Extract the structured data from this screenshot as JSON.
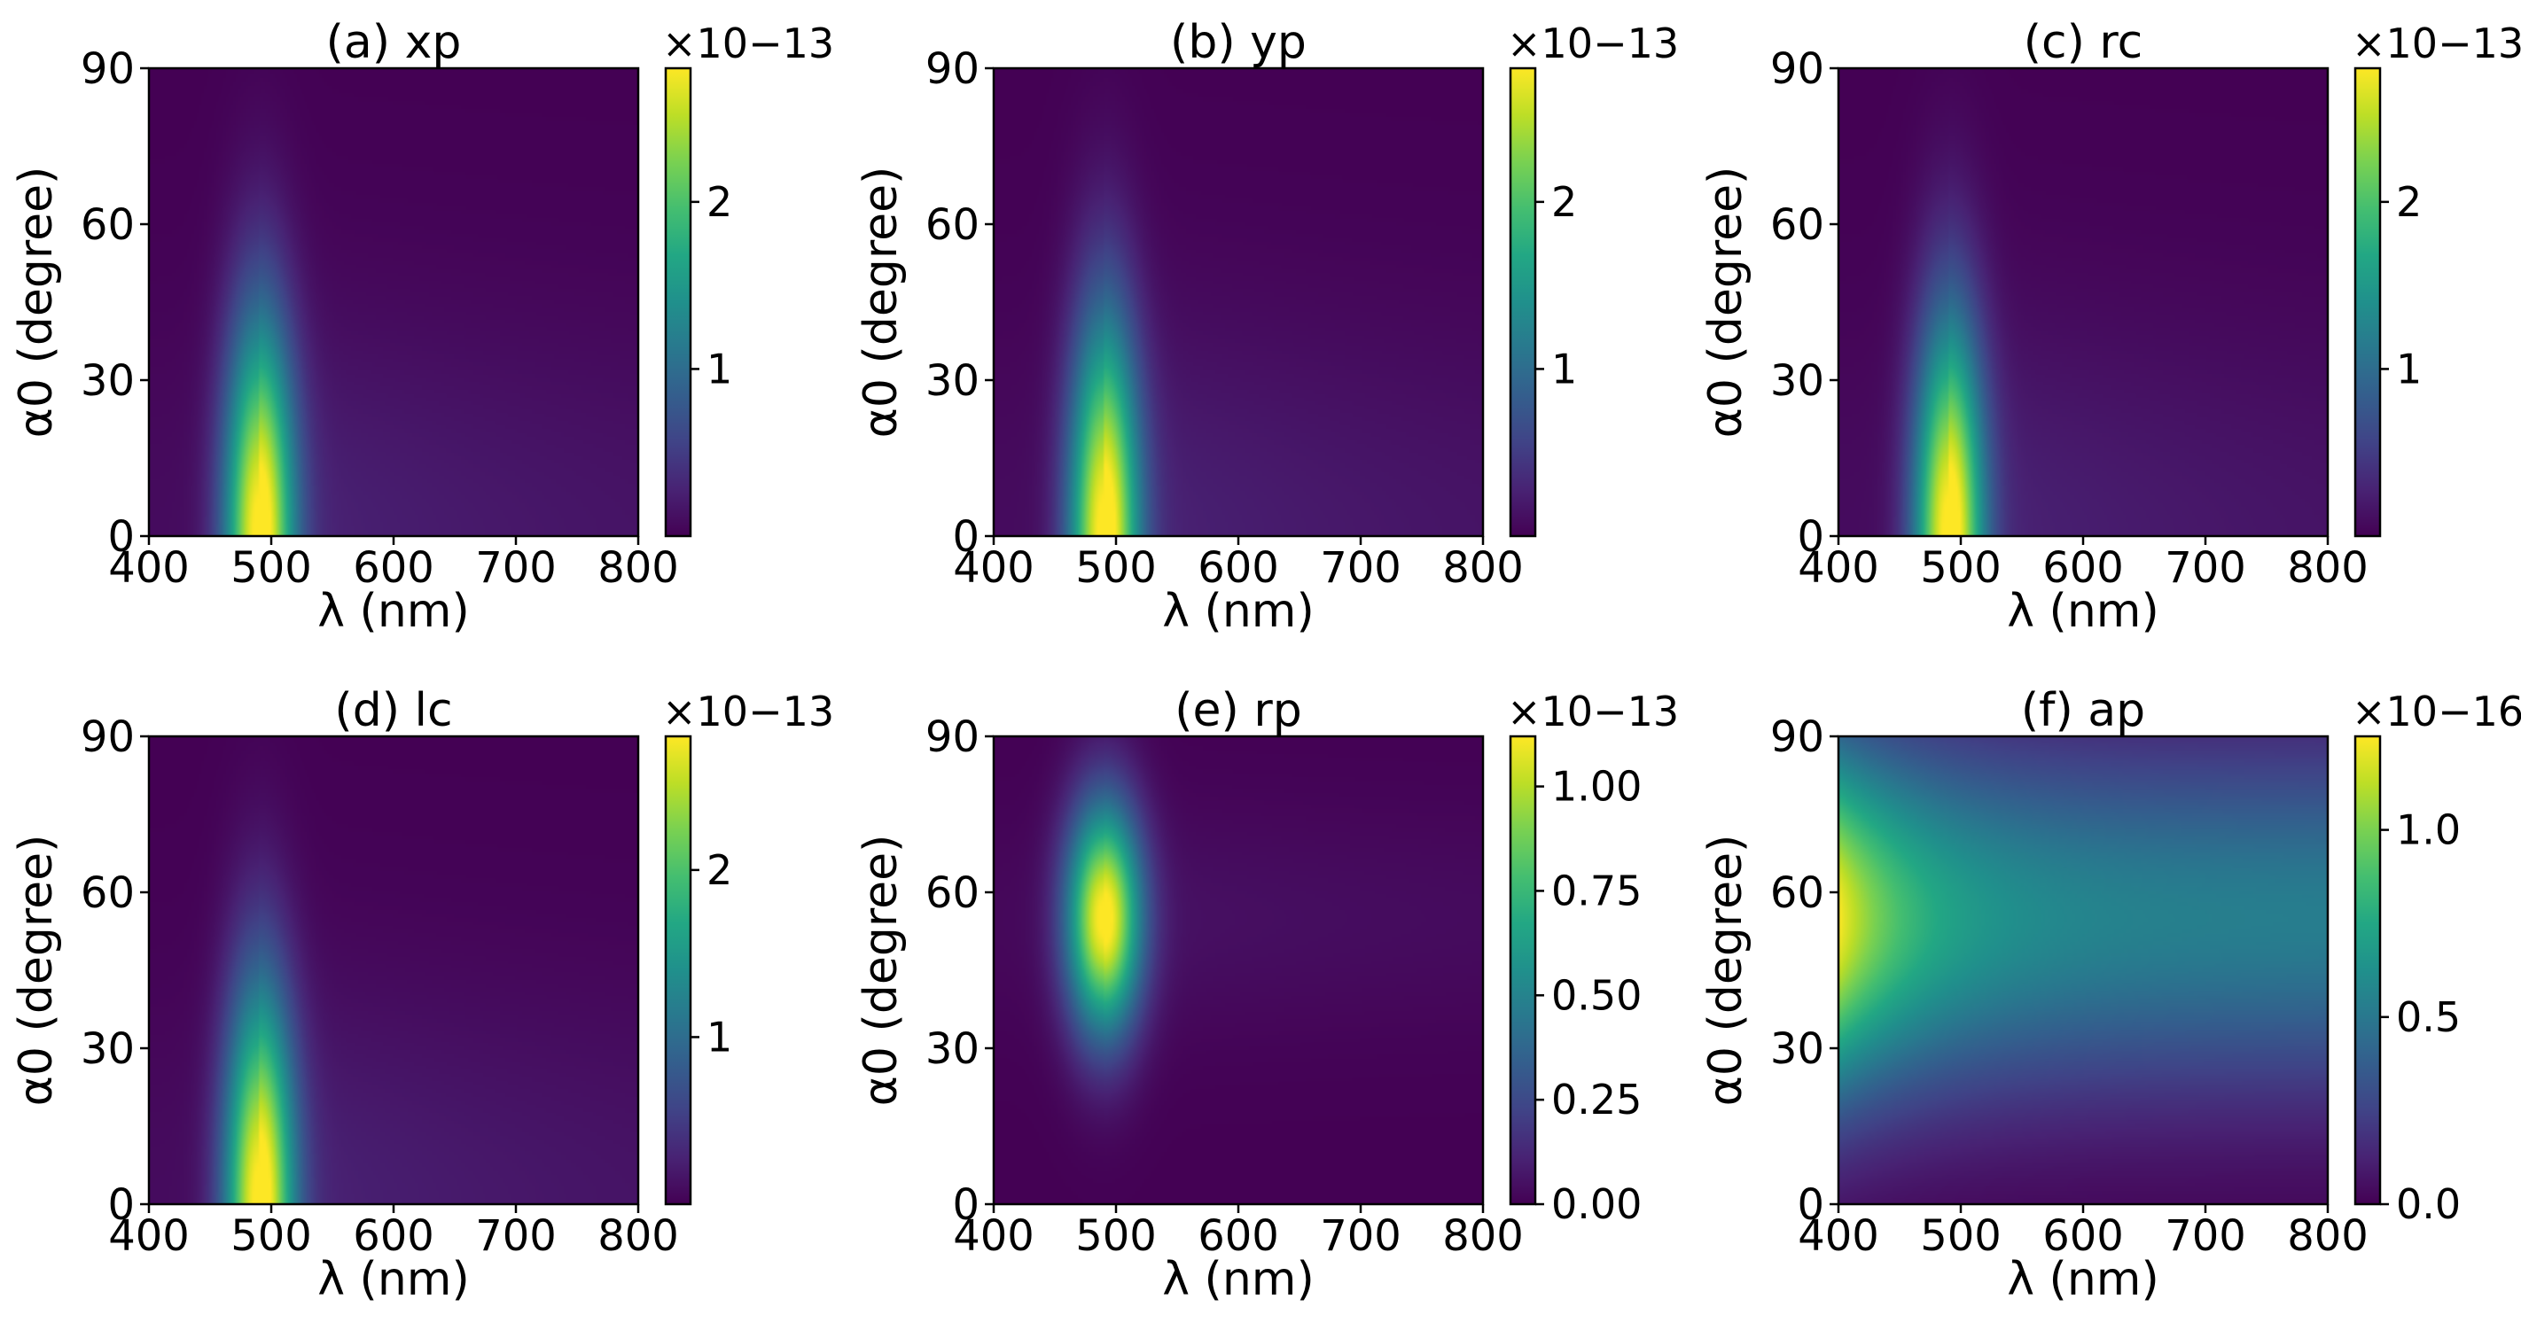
{
  "chart_data": [
    {
      "type": "heatmap",
      "title": "(a) xp",
      "xlabel": "λ (nm)",
      "ylabel": "α0 (degree)",
      "xlim": [
        400,
        800
      ],
      "ylim": [
        0,
        90
      ],
      "xticks": [
        400,
        500,
        600,
        700,
        800
      ],
      "yticks": [
        0,
        30,
        60,
        90
      ],
      "colormap": "viridis",
      "colorbar": {
        "range": [
          0,
          2.8
        ],
        "ticks": [
          "1",
          "2"
        ],
        "tick_values": [
          1,
          2
        ],
        "multiplier": "×10−13"
      },
      "peak": {
        "lambda_nm": 490,
        "alpha_deg": 0,
        "value": 2.8
      },
      "spread": {
        "lambda_nm": 28,
        "alpha_deg": 42
      },
      "background": 0.03,
      "ridge": 0.08
    },
    {
      "type": "heatmap",
      "title": "(b) yp",
      "xlabel": "λ (nm)",
      "ylabel": "α0 (degree)",
      "xlim": [
        400,
        800
      ],
      "ylim": [
        0,
        90
      ],
      "xticks": [
        400,
        500,
        600,
        700,
        800
      ],
      "yticks": [
        0,
        30,
        60,
        90
      ],
      "colormap": "viridis",
      "colorbar": {
        "range": [
          0,
          2.8
        ],
        "ticks": [
          "1",
          "2"
        ],
        "tick_values": [
          1,
          2
        ],
        "multiplier": "×10−13"
      },
      "peak": {
        "lambda_nm": 490,
        "alpha_deg": 0,
        "value": 2.8
      },
      "spread": {
        "lambda_nm": 28,
        "alpha_deg": 42
      },
      "background": 0.03,
      "ridge": 0.08
    },
    {
      "type": "heatmap",
      "title": "(c) rc",
      "xlabel": "λ (nm)",
      "ylabel": "α0 (degree)",
      "xlim": [
        400,
        800
      ],
      "ylim": [
        0,
        90
      ],
      "xticks": [
        400,
        500,
        600,
        700,
        800
      ],
      "yticks": [
        0,
        30,
        60,
        90
      ],
      "colormap": "viridis",
      "colorbar": {
        "range": [
          0,
          2.8
        ],
        "ticks": [
          "1",
          "2"
        ],
        "tick_values": [
          1,
          2
        ],
        "multiplier": "×10−13"
      },
      "peak": {
        "lambda_nm": 490,
        "alpha_deg": 0,
        "value": 2.8
      },
      "spread": {
        "lambda_nm": 28,
        "alpha_deg": 42
      },
      "background": 0.03,
      "ridge": 0.08
    },
    {
      "type": "heatmap",
      "title": "(d) lc",
      "xlabel": "λ (nm)",
      "ylabel": "α0 (degree)",
      "xlim": [
        400,
        800
      ],
      "ylim": [
        0,
        90
      ],
      "xticks": [
        400,
        500,
        600,
        700,
        800
      ],
      "yticks": [
        0,
        30,
        60,
        90
      ],
      "colormap": "viridis",
      "colorbar": {
        "range": [
          0,
          2.8
        ],
        "ticks": [
          "1",
          "2"
        ],
        "tick_values": [
          1,
          2
        ],
        "multiplier": "×10−13"
      },
      "peak": {
        "lambda_nm": 490,
        "alpha_deg": 0,
        "value": 2.8
      },
      "spread": {
        "lambda_nm": 28,
        "alpha_deg": 42
      },
      "background": 0.03,
      "ridge": 0.08
    },
    {
      "type": "heatmap",
      "title": "(e) rp",
      "xlabel": "λ (nm)",
      "ylabel": "α0 (degree)",
      "xlim": [
        400,
        800
      ],
      "ylim": [
        0,
        90
      ],
      "xticks": [
        400,
        500,
        600,
        700,
        800
      ],
      "yticks": [
        0,
        30,
        60,
        90
      ],
      "colormap": "viridis",
      "colorbar": {
        "range": [
          0,
          1.12
        ],
        "ticks": [
          "0.00",
          "0.25",
          "0.50",
          "0.75",
          "1.00"
        ],
        "tick_values": [
          0,
          0.25,
          0.5,
          0.75,
          1.0
        ],
        "multiplier": "×10−13"
      },
      "peak": {
        "lambda_nm": 490,
        "alpha_deg": 55,
        "value": 1.12
      },
      "spread": {
        "lambda_nm": 30,
        "alpha_deg": 22
      },
      "background": 0.02,
      "ridge": 0.03
    },
    {
      "type": "heatmap",
      "title": "(f) ap",
      "xlabel": "λ (nm)",
      "ylabel": "α0 (degree)",
      "xlim": [
        400,
        800
      ],
      "ylim": [
        0,
        90
      ],
      "xticks": [
        400,
        500,
        600,
        700,
        800
      ],
      "yticks": [
        0,
        30,
        60,
        90
      ],
      "colormap": "viridis",
      "colorbar": {
        "range": [
          0,
          1.25
        ],
        "ticks": [
          "0.0",
          "0.5",
          "1.0"
        ],
        "tick_values": [
          0,
          0.5,
          1.0
        ],
        "multiplier": "×10−16"
      },
      "peak": {
        "lambda_nm": 400,
        "alpha_deg": 55,
        "value": 1.25
      },
      "decay": {
        "plateau": 0.42,
        "lambda_nm": 70,
        "alpha_spread_deg": 28
      }
    }
  ]
}
